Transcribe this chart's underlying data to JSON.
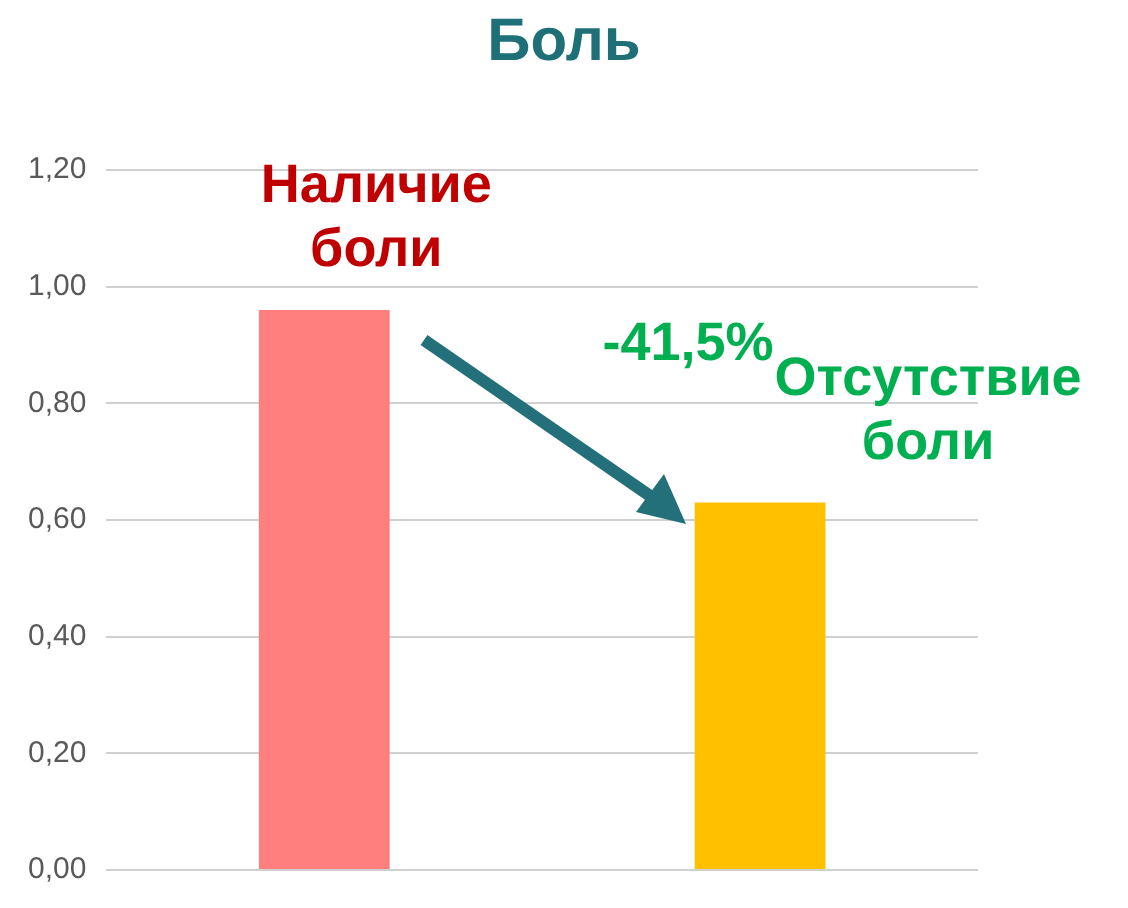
{
  "chart_data": {
    "type": "bar",
    "title": "Боль",
    "categories": [
      "Наличие боли",
      "Отсутствие боли"
    ],
    "values": [
      0.96,
      0.63
    ],
    "colors": [
      "#ff7f7f",
      "#ffc000"
    ],
    "ylim": [
      0,
      1.2
    ],
    "yticks": [
      {
        "value": 0,
        "label": "0,00"
      },
      {
        "value": 0.2,
        "label": "0,20"
      },
      {
        "value": 0.4,
        "label": "0,40"
      },
      {
        "value": 0.6,
        "label": "0,60"
      },
      {
        "value": 0.8,
        "label": "0,80"
      },
      {
        "value": 1,
        "label": "1,00"
      },
      {
        "value": 1.2,
        "label": "1,20"
      }
    ],
    "grid": "y",
    "legend": false,
    "annotations": [
      "-41,5%"
    ]
  }
}
